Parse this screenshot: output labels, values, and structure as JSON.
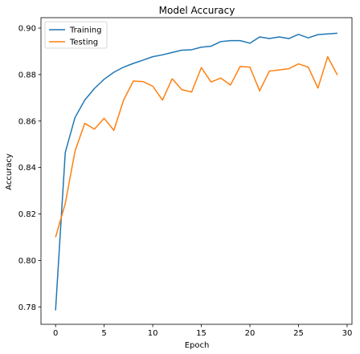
{
  "chart_data": {
    "type": "line",
    "title": "Model Accuracy",
    "xlabel": "Epoch",
    "ylabel": "Accuracy",
    "xlim": [
      -1.5,
      30.5
    ],
    "ylim": [
      0.7725,
      0.9045
    ],
    "xticks": [
      0,
      5,
      10,
      15,
      20,
      25,
      30
    ],
    "yticks": [
      0.78,
      0.8,
      0.82,
      0.84,
      0.86,
      0.88,
      0.9
    ],
    "ytick_labels": [
      "0.78",
      "0.80",
      "0.82",
      "0.84",
      "0.86",
      "0.88",
      "0.90"
    ],
    "grid": false,
    "legend_position": "upper-left",
    "x": [
      0,
      1,
      2,
      3,
      4,
      5,
      6,
      7,
      8,
      9,
      10,
      11,
      12,
      13,
      14,
      15,
      16,
      17,
      18,
      19,
      20,
      21,
      22,
      23,
      24,
      25,
      26,
      27,
      28,
      29
    ],
    "series": [
      {
        "name": "Training",
        "color": "#1f77b4",
        "values": [
          0.7785,
          0.8465,
          0.8615,
          0.869,
          0.874,
          0.878,
          0.881,
          0.8832,
          0.8848,
          0.8862,
          0.8877,
          0.8885,
          0.8895,
          0.8905,
          0.8907,
          0.8918,
          0.8922,
          0.8942,
          0.8946,
          0.8946,
          0.8935,
          0.8962,
          0.8955,
          0.8962,
          0.8955,
          0.8973,
          0.8958,
          0.8972,
          0.8975,
          0.8978
        ]
      },
      {
        "name": "Testing",
        "color": "#ff7f0e",
        "values": [
          0.81,
          0.8245,
          0.847,
          0.859,
          0.8565,
          0.8612,
          0.856,
          0.869,
          0.8772,
          0.877,
          0.875,
          0.869,
          0.8782,
          0.8735,
          0.8725,
          0.883,
          0.8768,
          0.8785,
          0.8755,
          0.8835,
          0.8832,
          0.873,
          0.8815,
          0.882,
          0.8825,
          0.8846,
          0.8832,
          0.8742,
          0.8877,
          0.8798
        ]
      }
    ]
  }
}
